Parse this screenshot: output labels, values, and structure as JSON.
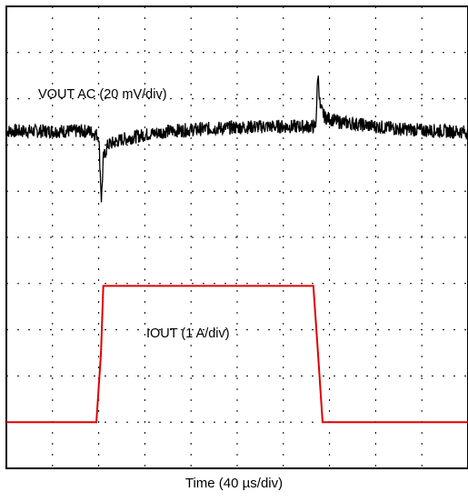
{
  "chart_data": {
    "type": "line",
    "xlabel": "Time (40 µs/div)",
    "grid": true,
    "divisions": {
      "x": 10,
      "y": 10
    },
    "channels": [
      {
        "label": "VOUT AC (20 mV/div)",
        "color": "#000000",
        "unit": "div",
        "baseline_div": 7.3,
        "noise_band_div": 0.3,
        "x_div": [
          0,
          1.8,
          2.0,
          2.06,
          2.1,
          2.2,
          2.5,
          3.0,
          3.5,
          4.0,
          4.5,
          5.0,
          5.6,
          6.7,
          6.75,
          6.8,
          6.9,
          7.2,
          7.6,
          8.0,
          8.5,
          9.0,
          9.5,
          10
        ],
        "y_div": [
          7.3,
          7.3,
          7.2,
          5.8,
          6.7,
          7.0,
          7.12,
          7.22,
          7.3,
          7.33,
          7.36,
          7.38,
          7.4,
          7.4,
          8.55,
          7.8,
          7.6,
          7.5,
          7.45,
          7.4,
          7.35,
          7.32,
          7.3,
          7.28
        ]
      },
      {
        "label": "IOUT (1 A/div)",
        "color": "#e00000",
        "unit": "div",
        "x_div": [
          0,
          1.95,
          2.05,
          2.1,
          6.65,
          6.75,
          6.85,
          10
        ],
        "y_div": [
          1.0,
          1.0,
          2.5,
          3.95,
          3.95,
          2.5,
          1.0,
          1.0
        ]
      }
    ]
  }
}
